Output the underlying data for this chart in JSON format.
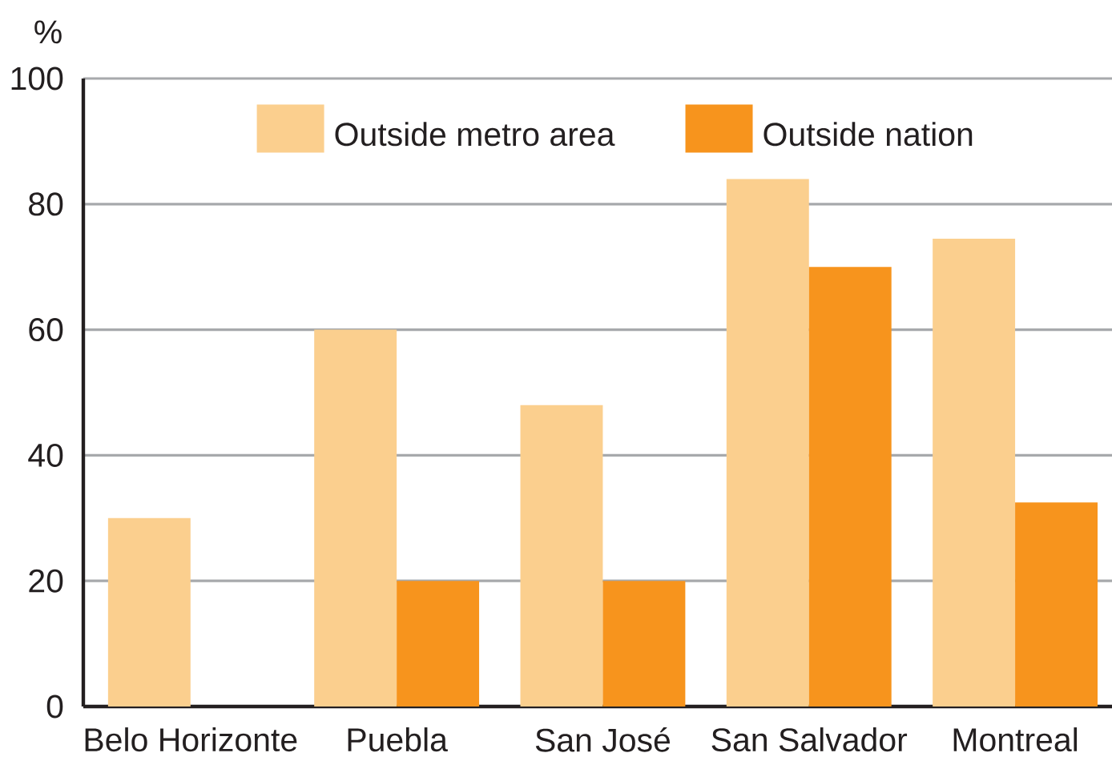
{
  "chart_data": {
    "type": "bar",
    "ylabel": "%",
    "categories": [
      "Belo Horizonte",
      "Puebla",
      "San José",
      "San Salvador",
      "Montreal"
    ],
    "series": [
      {
        "name": "Outside metro area",
        "color": "#fbcf8e",
        "values": [
          30,
          60,
          48,
          84,
          74.5
        ]
      },
      {
        "name": "Outside nation",
        "color": "#f7941d",
        "values": [
          null,
          20,
          20,
          70,
          32.5
        ]
      }
    ],
    "ylim": [
      0,
      100
    ],
    "yticks": [
      0,
      20,
      40,
      60,
      80,
      100
    ],
    "grid": "y",
    "legend": "top"
  }
}
